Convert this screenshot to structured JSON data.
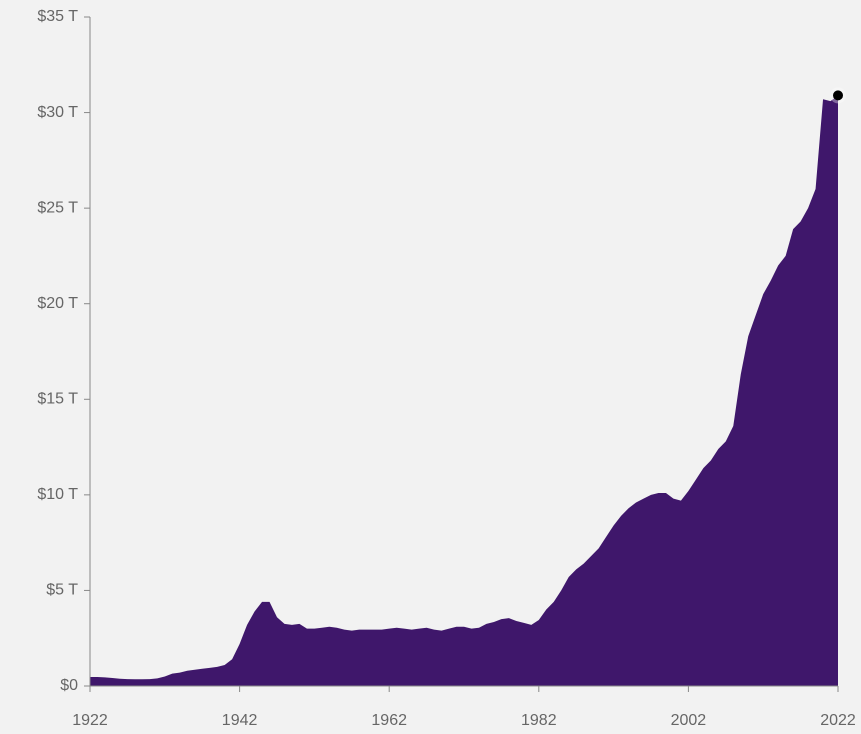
{
  "chart_data": {
    "type": "area",
    "x": [
      1922,
      1923,
      1924,
      1925,
      1926,
      1927,
      1928,
      1929,
      1930,
      1931,
      1932,
      1933,
      1934,
      1935,
      1936,
      1937,
      1938,
      1939,
      1940,
      1941,
      1942,
      1943,
      1944,
      1945,
      1946,
      1947,
      1948,
      1949,
      1950,
      1951,
      1952,
      1953,
      1954,
      1955,
      1956,
      1957,
      1958,
      1959,
      1960,
      1961,
      1962,
      1963,
      1964,
      1965,
      1966,
      1967,
      1968,
      1969,
      1970,
      1971,
      1972,
      1973,
      1974,
      1975,
      1976,
      1977,
      1978,
      1979,
      1980,
      1981,
      1982,
      1983,
      1984,
      1985,
      1986,
      1987,
      1988,
      1989,
      1990,
      1991,
      1992,
      1993,
      1994,
      1995,
      1996,
      1997,
      1998,
      1999,
      2000,
      2001,
      2002,
      2003,
      2004,
      2005,
      2006,
      2007,
      2008,
      2009,
      2010,
      2011,
      2012,
      2013,
      2014,
      2015,
      2016,
      2017,
      2018,
      2019,
      2020,
      2021,
      2022
    ],
    "values": [
      0.47,
      0.47,
      0.45,
      0.42,
      0.38,
      0.36,
      0.35,
      0.35,
      0.36,
      0.4,
      0.5,
      0.65,
      0.7,
      0.8,
      0.85,
      0.9,
      0.95,
      1.0,
      1.1,
      1.4,
      2.2,
      3.2,
      3.9,
      4.4,
      4.4,
      3.6,
      3.25,
      3.2,
      3.25,
      3.0,
      3.0,
      3.05,
      3.1,
      3.05,
      2.95,
      2.9,
      2.95,
      2.95,
      2.95,
      2.95,
      3.0,
      3.05,
      3.0,
      2.95,
      3.0,
      3.05,
      2.95,
      2.9,
      3.0,
      3.1,
      3.1,
      3.0,
      3.05,
      3.25,
      3.35,
      3.5,
      3.55,
      3.4,
      3.3,
      3.2,
      3.45,
      4.0,
      4.4,
      5.0,
      5.7,
      6.1,
      6.4,
      6.8,
      7.2,
      7.8,
      8.4,
      8.9,
      9.3,
      9.6,
      9.8,
      10.0,
      10.1,
      10.1,
      9.8,
      9.7,
      10.2,
      10.8,
      11.4,
      11.8,
      12.4,
      12.8,
      13.6,
      16.3,
      18.3,
      19.4,
      20.5,
      21.2,
      22.0,
      22.5,
      23.9,
      24.3,
      25.0,
      26.0,
      30.7,
      30.6,
      30.9
    ],
    "color": "#3f176b",
    "xlim": [
      1922,
      2022
    ],
    "xticks": [
      1922,
      1942,
      1962,
      1982,
      2002,
      2022
    ],
    "ylim": [
      0,
      35
    ],
    "yticks": [
      {
        "value": 0,
        "label": "$0"
      },
      {
        "value": 5,
        "label": "$5 T"
      },
      {
        "value": 10,
        "label": "$10 T"
      },
      {
        "value": 15,
        "label": "$15 T"
      },
      {
        "value": 20,
        "label": "$20 T"
      },
      {
        "value": 25,
        "label": "$25 T"
      },
      {
        "value": 30,
        "label": "$30 T"
      },
      {
        "value": 35,
        "label": "$35 T"
      }
    ]
  }
}
